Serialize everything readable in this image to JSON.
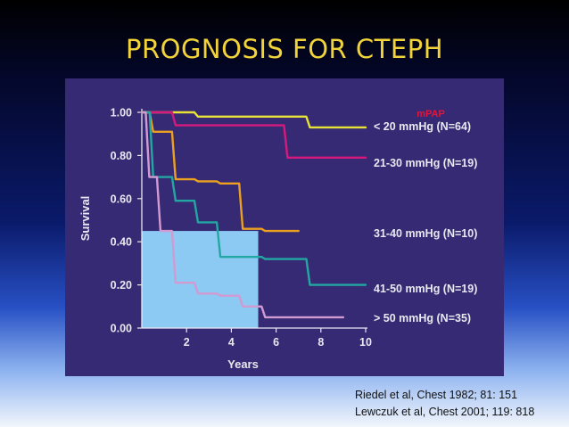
{
  "slide": {
    "title": "PROGNOSIS FOR CTEPH",
    "citations": [
      "Riedel et al, Chest 1982; 81: 151",
      "Lewczuk et al, Chest 2001; 119: 818"
    ]
  },
  "colors": {
    "panel": "#352a73",
    "axis": "#e8e8f0",
    "legend_title": "#e2153a",
    "highlight": "#8ccaf4"
  },
  "chart_data": {
    "type": "line",
    "title": "",
    "legend_title": "mPAP",
    "xlabel": "Years",
    "ylabel": "Survival",
    "xlim": [
      0,
      10
    ],
    "ylim": [
      0,
      1
    ],
    "x_ticks": [
      2,
      4,
      6,
      8,
      10
    ],
    "y_ticks": [
      "0.00",
      "0.20",
      "0.40",
      "0.60",
      "0.80",
      "1.00"
    ],
    "grid": false,
    "legend_placement": "right",
    "highlight_region": {
      "x": [
        0,
        5.2
      ],
      "y": [
        0,
        0.45
      ]
    },
    "series": [
      {
        "name": "< 20 mmHg (N=64)",
        "color": "#e8e238",
        "x": [
          0,
          1,
          2,
          3,
          4,
          5,
          6,
          7,
          8,
          9,
          10
        ],
        "y": [
          1.0,
          1.0,
          1.0,
          0.98,
          0.98,
          0.98,
          0.98,
          0.98,
          0.93,
          0.93,
          0.93
        ]
      },
      {
        "name": "21-30 mmHg (N=19)",
        "color": "#d6197c",
        "x": [
          0,
          1,
          2,
          3,
          4,
          5,
          6,
          7,
          8,
          9,
          10
        ],
        "y": [
          1.0,
          1.0,
          0.94,
          0.94,
          0.94,
          0.94,
          0.94,
          0.79,
          0.79,
          0.79,
          0.79
        ]
      },
      {
        "name": "31-40 mmHg (N=10)",
        "color": "#eca020",
        "x": [
          0,
          1,
          2,
          3,
          4,
          5,
          6,
          7
        ],
        "y": [
          1.0,
          0.91,
          0.69,
          0.68,
          0.67,
          0.46,
          0.45,
          0.45
        ]
      },
      {
        "name": "41-50 mmHg (N=19)",
        "color": "#23a7a2",
        "x": [
          0,
          1,
          2,
          3,
          4,
          5,
          6,
          7,
          8,
          9,
          10
        ],
        "y": [
          1.0,
          0.7,
          0.59,
          0.49,
          0.33,
          0.33,
          0.32,
          0.32,
          0.2,
          0.2,
          0.2
        ]
      },
      {
        "name": "> 50 mmHg (N=35)",
        "color": "#d29ad0",
        "x": [
          0,
          0.5,
          1,
          2,
          3,
          4,
          5,
          6,
          7,
          8,
          9
        ],
        "y": [
          1.0,
          0.7,
          0.45,
          0.21,
          0.16,
          0.15,
          0.1,
          0.05,
          0.05,
          0.05,
          0.05
        ]
      }
    ]
  }
}
